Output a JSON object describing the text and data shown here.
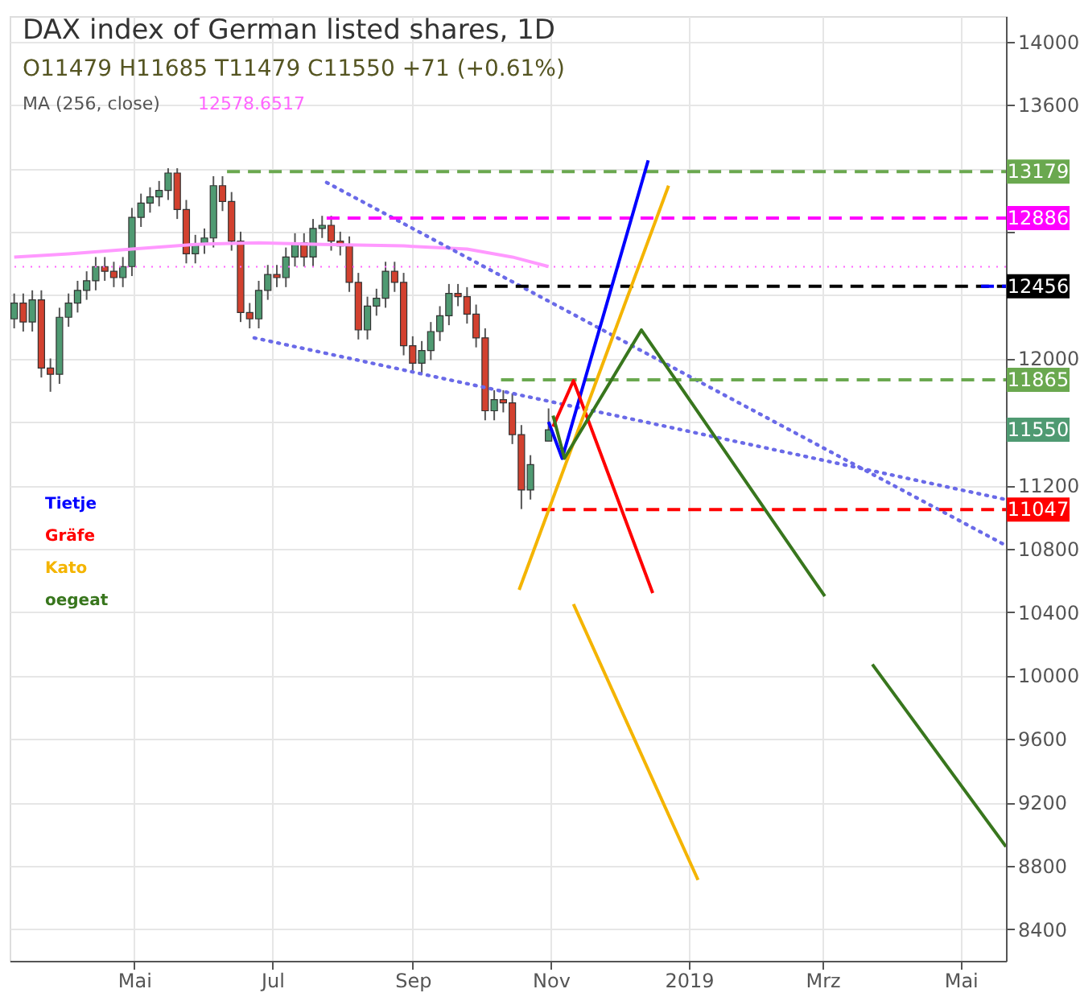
{
  "chart_data": {
    "type": "candlestick",
    "title": "DAX index of German listed shares, 1D",
    "subtitle": "O11479  H11685  T11479  C11550  +71 (+0.61%)",
    "x": [
      "2018-03-09",
      "2018-03-13",
      "2018-03-17",
      "2018-03-21",
      "2018-03-25",
      "2018-03-29",
      "2018-04-02",
      "2018-04-06",
      "2018-04-10",
      "2018-04-14",
      "2018-04-18",
      "2018-04-22",
      "2018-04-26",
      "2018-04-30",
      "2018-05-04",
      "2018-05-08",
      "2018-05-12",
      "2018-05-16",
      "2018-05-20",
      "2018-05-24",
      "2018-05-28",
      "2018-06-01",
      "2018-06-05",
      "2018-06-09",
      "2018-06-13",
      "2018-06-17",
      "2018-06-21",
      "2018-06-25",
      "2018-06-29",
      "2018-07-03",
      "2018-07-07",
      "2018-07-11",
      "2018-07-15",
      "2018-07-19",
      "2018-07-23",
      "2018-07-27",
      "2018-07-31",
      "2018-08-04",
      "2018-08-08",
      "2018-08-12",
      "2018-08-16",
      "2018-08-20",
      "2018-08-24",
      "2018-08-28",
      "2018-09-01",
      "2018-09-05",
      "2018-09-09",
      "2018-09-13",
      "2018-09-17",
      "2018-09-21",
      "2018-09-25",
      "2018-09-29",
      "2018-10-03",
      "2018-10-07",
      "2018-10-11",
      "2018-10-15",
      "2018-10-19",
      "2018-10-23",
      "2018-10-31"
    ],
    "ohlc": [
      [
        12250,
        12410,
        12190,
        12350
      ],
      [
        12350,
        12410,
        12170,
        12230
      ],
      [
        12230,
        12430,
        12170,
        12370
      ],
      [
        12370,
        12430,
        11880,
        11940
      ],
      [
        11940,
        12000,
        11790,
        11900
      ],
      [
        11900,
        12320,
        11840,
        12260
      ],
      [
        12260,
        12410,
        12200,
        12350
      ],
      [
        12350,
        12490,
        12290,
        12430
      ],
      [
        12430,
        12550,
        12370,
        12490
      ],
      [
        12490,
        12640,
        12430,
        12580
      ],
      [
        12580,
        12640,
        12490,
        12550
      ],
      [
        12550,
        12610,
        12450,
        12510
      ],
      [
        12510,
        12640,
        12450,
        12580
      ],
      [
        12580,
        12950,
        12520,
        12890
      ],
      [
        12890,
        13040,
        12830,
        12980
      ],
      [
        12980,
        13080,
        12920,
        13020
      ],
      [
        13020,
        13120,
        12960,
        13060
      ],
      [
        13060,
        13200,
        13000,
        13170
      ],
      [
        13170,
        13200,
        12880,
        12940
      ],
      [
        12940,
        13000,
        12600,
        12660
      ],
      [
        12660,
        12780,
        12600,
        12720
      ],
      [
        12720,
        12820,
        12660,
        12760
      ],
      [
        12760,
        13150,
        12700,
        13090
      ],
      [
        13090,
        13150,
        12930,
        12990
      ],
      [
        12990,
        13050,
        12680,
        12740
      ],
      [
        12740,
        12800,
        12230,
        12290
      ],
      [
        12290,
        12350,
        12190,
        12250
      ],
      [
        12250,
        12490,
        12190,
        12430
      ],
      [
        12430,
        12590,
        12370,
        12530
      ],
      [
        12530,
        12590,
        12450,
        12510
      ],
      [
        12510,
        12700,
        12450,
        12640
      ],
      [
        12640,
        12790,
        12580,
        12730
      ],
      [
        12730,
        12790,
        12580,
        12640
      ],
      [
        12640,
        12880,
        12580,
        12820
      ],
      [
        12820,
        12900,
        12760,
        12840
      ],
      [
        12840,
        12900,
        12680,
        12740
      ],
      [
        12740,
        12800,
        12650,
        12710
      ],
      [
        12710,
        12770,
        12420,
        12480
      ],
      [
        12480,
        12540,
        12120,
        12180
      ],
      [
        12180,
        12390,
        12120,
        12330
      ],
      [
        12330,
        12440,
        12270,
        12380
      ],
      [
        12380,
        12610,
        12320,
        12550
      ],
      [
        12550,
        12610,
        12420,
        12480
      ],
      [
        12480,
        12540,
        12020,
        12080
      ],
      [
        12080,
        12140,
        11910,
        11970
      ],
      [
        11970,
        12110,
        11910,
        12050
      ],
      [
        12050,
        12230,
        11990,
        12170
      ],
      [
        12170,
        12330,
        12110,
        12270
      ],
      [
        12270,
        12470,
        12210,
        12410
      ],
      [
        12410,
        12470,
        12330,
        12390
      ],
      [
        12390,
        12450,
        12220,
        12280
      ],
      [
        12280,
        12340,
        12070,
        12130
      ],
      [
        12130,
        12190,
        11610,
        11670
      ],
      [
        11670,
        11800,
        11610,
        11740
      ],
      [
        11740,
        11800,
        11660,
        11720
      ],
      [
        11720,
        11780,
        11460,
        11520
      ],
      [
        11520,
        11580,
        11050,
        11170
      ],
      [
        11170,
        11390,
        11110,
        11330
      ],
      [
        11479,
        11685,
        11479,
        11550
      ]
    ],
    "colors": [
      "#4f9a72",
      "#d2412f",
      "#4f9a72",
      "#d2412f",
      "#d2412f",
      "#4f9a72",
      "#4f9a72",
      "#4f9a72",
      "#4f9a72",
      "#4f9a72",
      "#d2412f",
      "#d2412f",
      "#4f9a72",
      "#4f9a72",
      "#4f9a72",
      "#4f9a72",
      "#4f9a72",
      "#4f9a72",
      "#d2412f",
      "#d2412f",
      "#4f9a72",
      "#4f9a72",
      "#4f9a72",
      "#d2412f",
      "#d2412f",
      "#d2412f",
      "#d2412f",
      "#4f9a72",
      "#4f9a72",
      "#d2412f",
      "#4f9a72",
      "#4f9a72",
      "#d2412f",
      "#4f9a72",
      "#4f9a72",
      "#d2412f",
      "#d2412f",
      "#d2412f",
      "#d2412f",
      "#4f9a72",
      "#4f9a72",
      "#4f9a72",
      "#d2412f",
      "#d2412f",
      "#d2412f",
      "#4f9a72",
      "#4f9a72",
      "#4f9a72",
      "#4f9a72",
      "#d2412f",
      "#d2412f",
      "#d2412f",
      "#d2412f",
      "#4f9a72",
      "#d2412f",
      "#d2412f",
      "#d2412f",
      "#4f9a72",
      "#4f9a72"
    ],
    "series": [
      {
        "type": "line",
        "color": "#ff99ff",
        "x": [
          "2018-03-09",
          "2018-04-02",
          "2018-04-30",
          "2018-05-28",
          "2018-06-25",
          "2018-07-23",
          "2018-08-28",
          "2018-09-25",
          "2018-10-15",
          "2018-10-31"
        ],
        "values": [
          12640,
          12660,
          12690,
          12720,
          12730,
          12720,
          12710,
          12690,
          12640,
          12580
        ]
      },
      {
        "type": "line",
        "color": "#6a6ae8",
        "line_style": "dotted",
        "x": [
          "2018-06-23",
          "2019-05-21"
        ],
        "values": [
          12130,
          11110
        ]
      },
      {
        "type": "line",
        "color": "#6a6ae8",
        "line_style": "dotted",
        "x": [
          "2018-07-25",
          "2019-05-21"
        ],
        "values": [
          13110,
          10820
        ]
      },
      {
        "type": "line",
        "color": "#6aa84f",
        "line_style": "dashed",
        "x": [
          "2018-06-11",
          "2019-05-21"
        ],
        "values": [
          13179,
          13179
        ]
      },
      {
        "type": "line",
        "color": "#ff00ff",
        "line_style": "dashed",
        "x": [
          "2018-07-25",
          "2019-05-21"
        ],
        "values": [
          12886,
          12886
        ]
      },
      {
        "type": "line",
        "color": "#000000",
        "line_style": "dashed",
        "x": [
          "2018-09-28",
          "2019-05-21"
        ],
        "values": [
          12456,
          12456
        ]
      },
      {
        "type": "line",
        "color": "#0000ff",
        "line_style": "dashed",
        "x": [
          "2019-05-10",
          "2019-05-21"
        ],
        "values": [
          12456,
          12456
        ]
      },
      {
        "type": "line",
        "color": "#6aa84f",
        "line_style": "dashed",
        "x": [
          "2018-10-10",
          "2019-05-21"
        ],
        "values": [
          11865,
          11865
        ]
      },
      {
        "type": "line",
        "color": "#ff0000",
        "line_style": "dashed",
        "x": [
          "2018-10-28",
          "2019-05-21"
        ],
        "values": [
          11047,
          11047
        ]
      },
      {
        "name": "Tietje",
        "type": "line",
        "color": "#0000ff",
        "x": [
          "2018-10-31",
          "2018-11-06",
          "2018-12-14"
        ],
        "values": [
          11600,
          11370,
          13250
        ]
      },
      {
        "name": "Gräfe",
        "type": "line",
        "color": "#ff0000",
        "x": [
          "2018-11-02",
          "2018-11-11",
          "2018-12-16"
        ],
        "values": [
          11570,
          11860,
          10520
        ]
      },
      {
        "name": "Kato",
        "type": "line",
        "color": "#f4b400",
        "x": [
          "2018-10-18",
          "2018-12-23"
        ],
        "values": [
          10540,
          13090
        ]
      },
      {
        "name": "oegeat",
        "type": "line",
        "color": "#38761d",
        "x": [
          "2018-11-02",
          "2018-11-07",
          "2018-12-11",
          "2019-03-02"
        ],
        "values": [
          11640,
          11370,
          12180,
          10500
        ]
      },
      {
        "type": "line",
        "color": "#f4b400",
        "x": [
          "2018-11-11",
          "2019-01-05"
        ],
        "values": [
          10450,
          8710
        ]
      },
      {
        "type": "line",
        "color": "#38761d",
        "x": [
          "2019-03-23",
          "2019-05-21"
        ],
        "values": [
          10070,
          8920
        ]
      }
    ],
    "ref_lines": [
      {
        "axis": "y",
        "value": 12578.6517,
        "label": "12578.6517",
        "color": "#ff66ff",
        "line_style": "dotted"
      }
    ],
    "annotations": [
      "MA (256, close)",
      {
        "text": "13179",
        "x": "2019-05-21",
        "y": 13179
      },
      {
        "text": "12886",
        "x": "2019-05-21",
        "y": 12886
      },
      {
        "text": "12456",
        "x": "2019-05-21",
        "y": 12456
      },
      {
        "text": "11865",
        "x": "2019-05-21",
        "y": 11865
      },
      "11550",
      {
        "text": "11047",
        "x": "2019-05-21",
        "y": 11047
      }
    ],
    "xlim": [
      "2018-03-07",
      "2019-05-21"
    ],
    "xticks": [
      {
        "value": "2018-05-01",
        "label": "Mai"
      },
      {
        "value": "2018-07-01",
        "label": "Jul"
      },
      {
        "value": "2018-09-01",
        "label": "Sep"
      },
      {
        "value": "2018-11-01",
        "label": "Nov"
      },
      {
        "value": "2019-01-01",
        "label": "2019"
      },
      {
        "value": "2019-03-01",
        "label": "Mrz"
      },
      {
        "value": "2019-05-01",
        "label": "Mai"
      }
    ],
    "ylim": [
      8200,
      14160
    ],
    "yticks": [
      8400,
      8800,
      9200,
      9600,
      10000,
      10400,
      10800,
      11200,
      {
        "value": 11600,
        "label": null
      },
      12000,
      {
        "value": 12400,
        "label": null
      },
      {
        "value": 12800,
        "label": null
      },
      {
        "value": 13200,
        "label": null
      },
      13600,
      14000
    ],
    "grid": true,
    "legend": "left"
  }
}
